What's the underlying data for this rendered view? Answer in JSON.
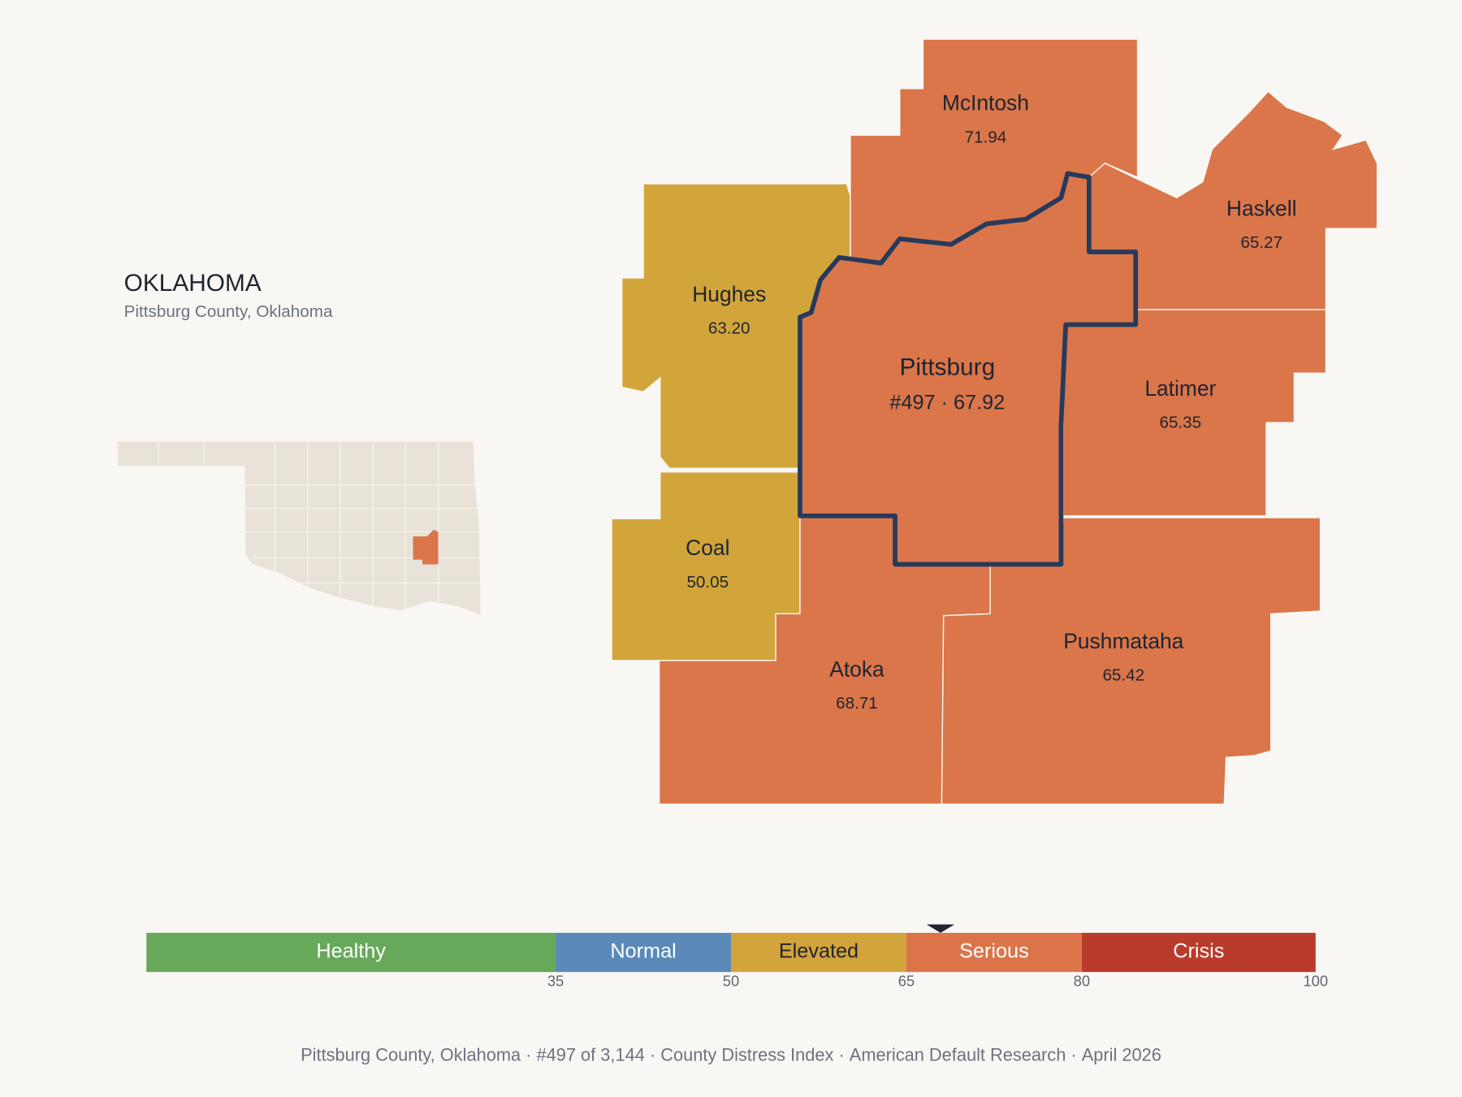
{
  "header": {
    "title": "OKLAHOMA",
    "subtitle": "Pittsburg County, Oklahoma"
  },
  "counties": [
    {
      "name": "McIntosh",
      "value": "71.94",
      "color": "#da764a"
    },
    {
      "name": "Haskell",
      "value": "65.27",
      "color": "#da764a"
    },
    {
      "name": "Hughes",
      "value": "63.20",
      "color": "#d2a53a"
    },
    {
      "name": "Pittsburg",
      "value": "#497 · 67.92",
      "color": "#da764a"
    },
    {
      "name": "Latimer",
      "value": "65.35",
      "color": "#da764a"
    },
    {
      "name": "Coal",
      "value": "50.05",
      "color": "#d2a53a"
    },
    {
      "name": "Atoka",
      "value": "68.71",
      "color": "#da764a"
    },
    {
      "name": "Pushmataha",
      "value": "65.42",
      "color": "#da764a"
    }
  ],
  "scale": {
    "xlim": [
      0,
      100
    ],
    "xticks": [
      35,
      50,
      65,
      80,
      100
    ],
    "marker": 67.92,
    "bands": [
      {
        "name": "Healthy",
        "color": "#67a85a"
      },
      {
        "name": "Normal",
        "color": "#5b8ab9"
      },
      {
        "name": "Elevated",
        "color": "#d3a33c"
      },
      {
        "name": "Serious",
        "color": "#db7549"
      },
      {
        "name": "Crisis",
        "color": "#b83b2b"
      }
    ]
  },
  "footer": [
    "Pittsburg County, Oklahoma",
    "#497 of 3,144",
    "County Distress Index",
    "American Default Research",
    "April 2026"
  ]
}
